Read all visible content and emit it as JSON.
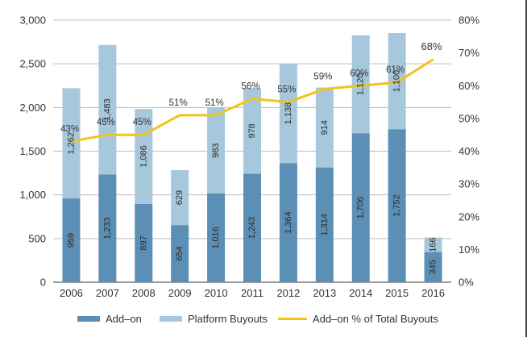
{
  "chart_data": {
    "type": "bar",
    "stacked": true,
    "categories": [
      "2006",
      "2007",
      "2008",
      "2009",
      "2010",
      "2011",
      "2012",
      "2013",
      "2014",
      "2015",
      "2016"
    ],
    "series": [
      {
        "name": "Add–on",
        "kind": "bar",
        "axis": "left",
        "color": "#5b8fb5",
        "values": [
          959,
          1233,
          897,
          654,
          1016,
          1243,
          1364,
          1314,
          1706,
          1752,
          345
        ],
        "labels": [
          "959",
          "1,233",
          "897",
          "654",
          "1,016",
          "1,243",
          "1,364",
          "1,314",
          "1,706",
          "1,752",
          "345"
        ]
      },
      {
        "name": "Platform Buyouts",
        "kind": "bar",
        "axis": "left",
        "color": "#a7c8dc",
        "values": [
          1262,
          1483,
          1086,
          629,
          983,
          978,
          1138,
          914,
          1120,
          1100,
          166
        ],
        "labels": [
          "1,262",
          "1,483",
          "1,086",
          "629",
          "983",
          "978",
          "1,138",
          "914",
          "1,120",
          "1,100",
          "166"
        ]
      },
      {
        "name": "Add–on % of Total Buyouts",
        "kind": "line",
        "axis": "right",
        "color": "#f0c419",
        "values": [
          43,
          45,
          45,
          51,
          51,
          56,
          55,
          59,
          60,
          61,
          68
        ],
        "labels": [
          "43%",
          "45%",
          "45%",
          "51%",
          "51%",
          "56%",
          "55%",
          "59%",
          "60%",
          "61%",
          "68%"
        ]
      }
    ],
    "y_left": {
      "min": 0,
      "max": 3000,
      "ticks": [
        "0",
        "500",
        "1,000",
        "1,500",
        "2,000",
        "2,500",
        "3,000"
      ]
    },
    "y_right": {
      "min": 0,
      "max": 80,
      "ticks": [
        "0%",
        "10%",
        "20%",
        "30%",
        "40%",
        "50%",
        "60%",
        "70%",
        "80%"
      ]
    },
    "grid": true,
    "legend_position": "bottom",
    "title": "",
    "xlabel": "",
    "ylabel": ""
  }
}
